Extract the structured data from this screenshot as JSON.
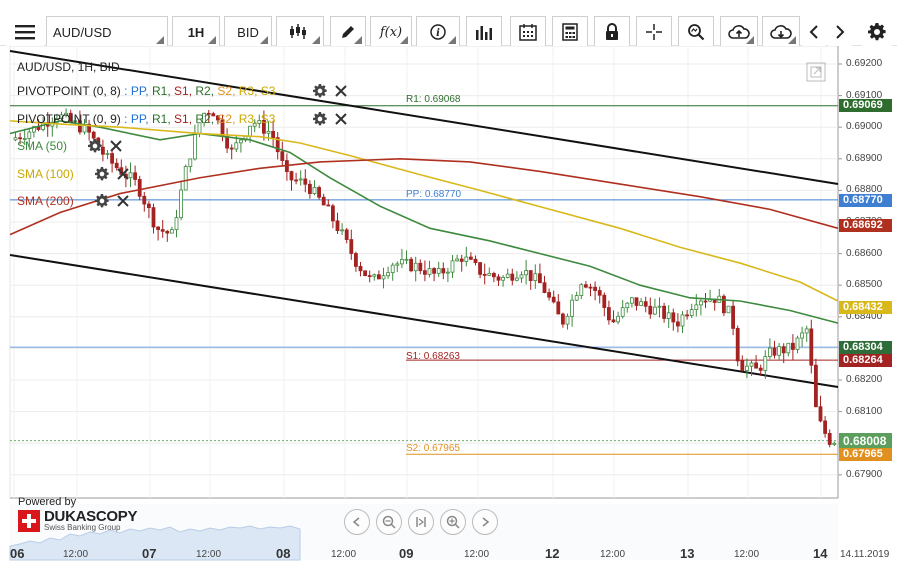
{
  "toolbar": {
    "symbol": "AUD/USD",
    "timeframe": "1H",
    "price_type": "BID",
    "icons": [
      "menu-icon",
      "candlestick-type-icon",
      "pencil-icon",
      "function-icon",
      "info-icon",
      "bar-chart-icon",
      "calendar-icon",
      "calculator-icon",
      "lock-icon",
      "crosshair-icon",
      "zoom-icon",
      "cloud-upload-icon",
      "cloud-download-icon",
      "chevron-left-icon",
      "chevron-right-icon",
      "gear-icon"
    ],
    "function_label": "f(x)"
  },
  "legend": {
    "title": "AUD/USD, 1H, BID",
    "pivot1": {
      "name": "PIVOTPOINT (0, 8)",
      "sep": ":",
      "pp": "PP,",
      "r1": "R1,",
      "s1": "S1,",
      "r2": "R2,",
      "s2": "S2,",
      "r3": "R3,",
      "s3": "S3"
    },
    "pivot2": {
      "name": "PIVOTPOINT (0, 9)",
      "sep": ":",
      "pp": "PP,",
      "r1": "R1,",
      "s1": "S1,",
      "r2": "R2,",
      "s2": "S2,",
      "r3": "R3,",
      "s3": "S3"
    },
    "sma50": "SMA (50)",
    "sma100": "SMA (100)",
    "sma200": "SMA (200)"
  },
  "levels": {
    "r1": {
      "label": "R1: 0.69068",
      "value": 0.69068,
      "tag": "0.69069",
      "color": "#2e6d2e"
    },
    "pp": {
      "label": "PP: 0.68770",
      "value": 0.6877,
      "tag": "0.68770",
      "color": "#3f7fd1"
    },
    "s1": {
      "label": "S1: 0.68263",
      "value": 0.68263,
      "tag": "0.68264",
      "color": "#a32222"
    },
    "s2": {
      "label": "S2: 0.67965",
      "value": 0.67965,
      "tag": "0.67965",
      "color": "#e0901f"
    }
  },
  "price_tags": [
    {
      "text": "0.69069",
      "value": 0.69069,
      "color": "#2e6d2e"
    },
    {
      "text": "0.68770",
      "value": 0.6877,
      "color": "#3f7fd1"
    },
    {
      "text": "0.68692",
      "value": 0.68692,
      "color": "#b03020"
    },
    {
      "text": "0.68432",
      "value": 0.68432,
      "color": "#d9b81a"
    },
    {
      "text": "0.68304",
      "value": 0.68304,
      "color": "#2e6d3a"
    },
    {
      "text": "0.68264",
      "value": 0.68264,
      "color": "#a32222"
    },
    {
      "text": "0.68008",
      "value": 0.68008,
      "color": "#5c9e5c"
    },
    {
      "text": "0.67965",
      "value": 0.67965,
      "color": "#e0901f"
    }
  ],
  "y_axis": [
    "0.69200",
    "0.69100",
    "0.69000",
    "0.68900",
    "0.68800",
    "0.68700",
    "0.68600",
    "0.68500",
    "0.68400",
    "0.68300",
    "0.68200",
    "0.68100",
    "0.68000",
    "0.67900"
  ],
  "x_axis": [
    {
      "text": "06",
      "day": true
    },
    {
      "text": "12:00",
      "day": false
    },
    {
      "text": "07",
      "day": true
    },
    {
      "text": "12:00",
      "day": false
    },
    {
      "text": "08",
      "day": true
    },
    {
      "text": "12:00",
      "day": false
    },
    {
      "text": "09",
      "day": true
    },
    {
      "text": "12:00",
      "day": false
    },
    {
      "text": "12",
      "day": true
    },
    {
      "text": "12:00",
      "day": false
    },
    {
      "text": "13",
      "day": true
    },
    {
      "text": "12:00",
      "day": false
    },
    {
      "text": "14",
      "day": true
    },
    {
      "text": "14.11.2019",
      "day": false
    }
  ],
  "powered_by": "Powered by",
  "brand": "DUKASCOPY",
  "brand_sub": "Swiss Banking Group",
  "nav_icons": [
    "scroll-left-icon",
    "zoom-out-icon",
    "reset-icon",
    "zoom-in-icon",
    "scroll-right-icon"
  ]
}
